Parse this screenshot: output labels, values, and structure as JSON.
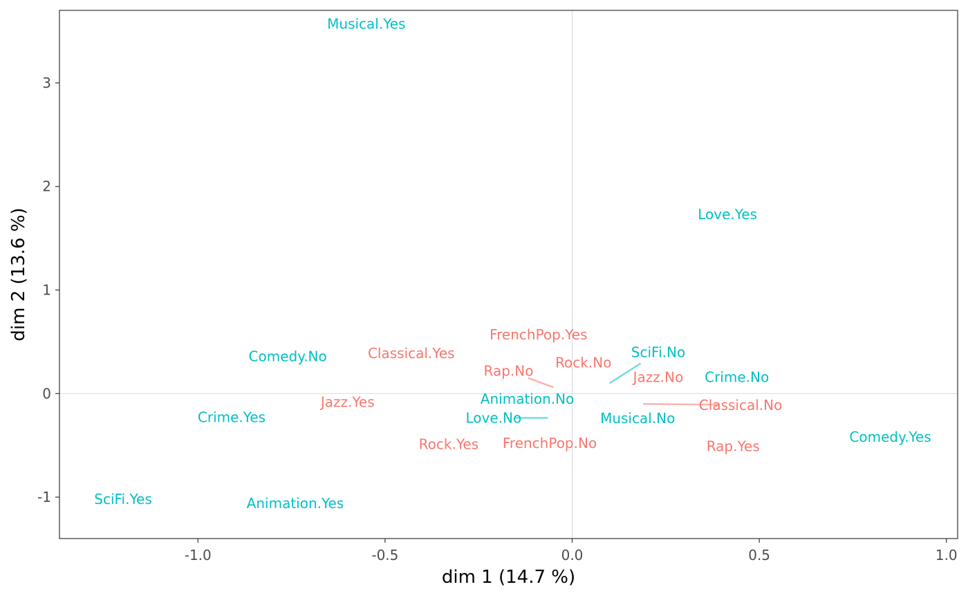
{
  "chart_data": {
    "type": "scatter",
    "xlabel": "dim 1 (14.7 %)",
    "ylabel": "dim 2 (13.6 %)",
    "xlim": [
      -1.37,
      1.03
    ],
    "ylim": [
      -1.4,
      3.7
    ],
    "x_ticks": [
      -1.0,
      -0.5,
      0.0,
      0.5,
      1.0
    ],
    "x_tick_labels": [
      "-1.0",
      "-0.5",
      "0.0",
      "0.5",
      "1.0"
    ],
    "y_ticks": [
      -1,
      0,
      1,
      2,
      3
    ],
    "y_tick_labels": [
      "-1",
      "0",
      "1",
      "2",
      "3"
    ],
    "reference_lines": {
      "x": 0,
      "y": 0
    },
    "grid": false,
    "legend": "none",
    "colors": {
      "music": "#f8766d",
      "film": "#00bfc4",
      "frame": "#333333",
      "zero": "#d9d9d9"
    },
    "series": [
      {
        "group": "music",
        "points": [
          {
            "label": "FrenchPop.Yes",
            "x": -0.075,
            "y": 0.47,
            "text_x": -0.09,
            "text_y": 0.57
          },
          {
            "label": "Classical.Yes",
            "x": -0.43,
            "y": 0.39,
            "text_x": -0.43,
            "text_y": 0.39
          },
          {
            "label": "Rap.No",
            "x": -0.05,
            "y": 0.06,
            "text_x": -0.17,
            "text_y": 0.22
          },
          {
            "label": "Rock.No",
            "x": 0.0,
            "y": 0.17,
            "text_x": 0.03,
            "text_y": 0.3
          },
          {
            "label": "Jazz.No",
            "x": 0.23,
            "y": 0.16,
            "text_x": 0.23,
            "text_y": 0.16
          },
          {
            "label": "Classical.No",
            "x": 0.19,
            "y": -0.1,
            "text_x": 0.45,
            "text_y": -0.11
          },
          {
            "label": "Jazz.Yes",
            "x": -0.6,
            "y": -0.08,
            "text_x": -0.6,
            "text_y": -0.08
          },
          {
            "label": "Rock.Yes",
            "x": -0.33,
            "y": -0.49,
            "text_x": -0.33,
            "text_y": -0.49
          },
          {
            "label": "FrenchPop.No",
            "x": -0.06,
            "y": -0.48,
            "text_x": -0.06,
            "text_y": -0.48
          },
          {
            "label": "Rap.Yes",
            "x": 0.43,
            "y": -0.51,
            "text_x": 0.43,
            "text_y": -0.51
          }
        ]
      },
      {
        "group": "film",
        "points": [
          {
            "label": "Musical.Yes",
            "x": -0.55,
            "y": 3.57,
            "text_x": -0.55,
            "text_y": 3.57
          },
          {
            "label": "Love.Yes",
            "x": 0.415,
            "y": 1.73,
            "text_x": 0.415,
            "text_y": 1.73
          },
          {
            "label": "Comedy.No",
            "x": -0.76,
            "y": 0.36,
            "text_x": -0.76,
            "text_y": 0.36
          },
          {
            "label": "SciFi.No",
            "x": 0.1,
            "y": 0.1,
            "text_x": 0.23,
            "text_y": 0.4
          },
          {
            "label": "Crime.No",
            "x": 0.44,
            "y": 0.16,
            "text_x": 0.44,
            "text_y": 0.16
          },
          {
            "label": "Animation.No",
            "x": -0.12,
            "y": -0.05,
            "text_x": -0.12,
            "text_y": -0.05
          },
          {
            "label": "Crime.Yes",
            "x": -0.91,
            "y": -0.23,
            "text_x": -0.91,
            "text_y": -0.23
          },
          {
            "label": "Love.No",
            "x": -0.065,
            "y": -0.235,
            "text_x": -0.21,
            "text_y": -0.235
          },
          {
            "label": "Musical.No",
            "x": 0.175,
            "y": -0.24,
            "text_x": 0.175,
            "text_y": -0.24
          },
          {
            "label": "Comedy.Yes",
            "x": 0.85,
            "y": -0.42,
            "text_x": 0.85,
            "text_y": -0.42
          },
          {
            "label": "SciFi.Yes",
            "x": -1.2,
            "y": -1.02,
            "text_x": -1.2,
            "text_y": -1.02
          },
          {
            "label": "Animation.Yes",
            "x": -0.74,
            "y": -1.06,
            "text_x": -0.74,
            "text_y": -1.06
          }
        ]
      }
    ]
  }
}
